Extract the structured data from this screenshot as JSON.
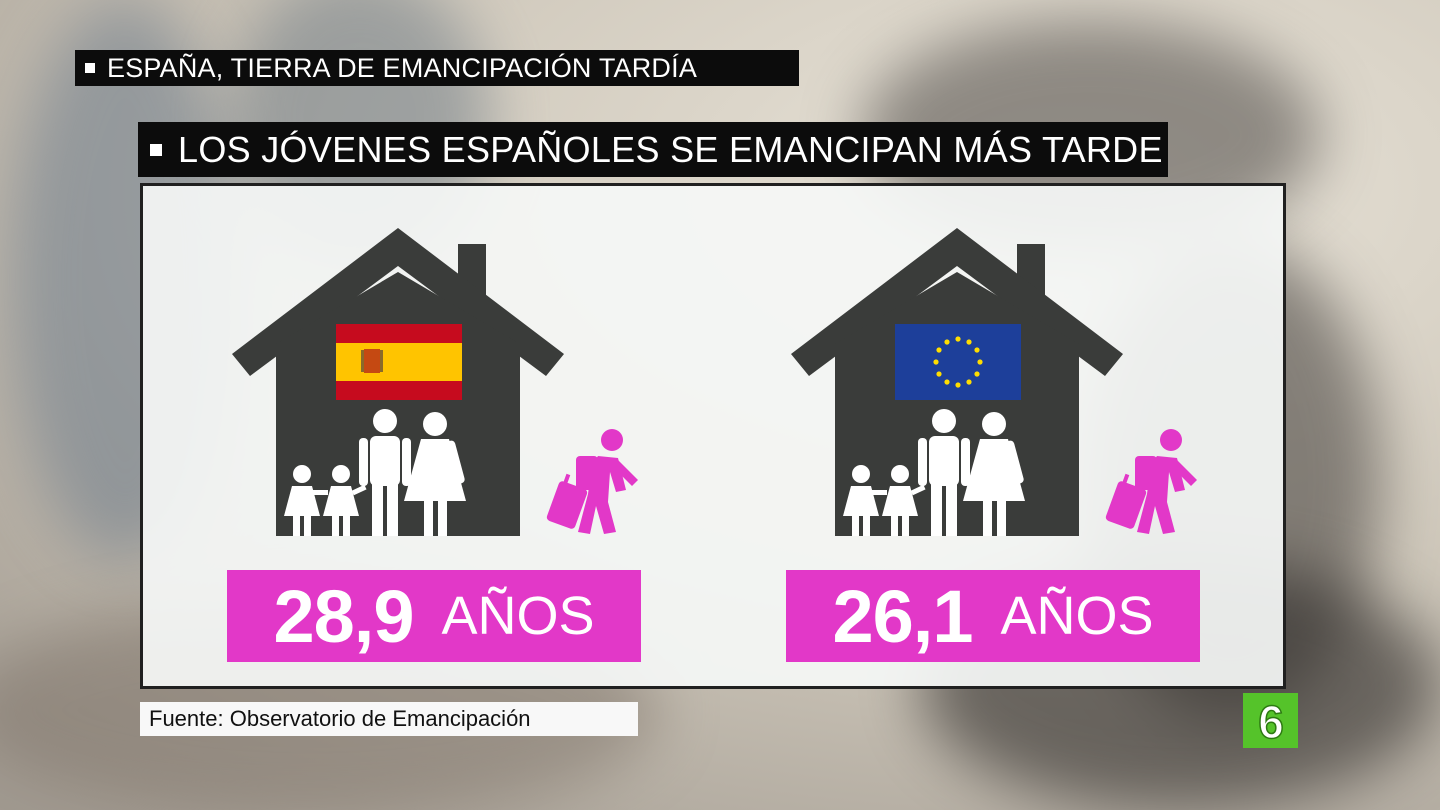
{
  "lower_third": {
    "text": "ESPAÑA, TIERRA DE EMANCIPACIÓN TARDÍA"
  },
  "headline": {
    "text": "LOS JÓVENES ESPAÑOLES SE EMANCIPAN MÁS TARDE"
  },
  "groups": [
    {
      "flag": "spain-flag",
      "age": "28,9",
      "unit": "AÑOS"
    },
    {
      "flag": "eu-flag",
      "age": "26,1",
      "unit": "AÑOS"
    }
  ],
  "source": {
    "text": "Fuente: Observatorio de Emancipación"
  },
  "logo": {
    "text": "6"
  },
  "colors": {
    "accent": "#e238c8",
    "house": "#3a3c3a",
    "logo": "#55c32a",
    "bar": "#0c0c0c"
  },
  "icons": [
    "house-icon",
    "family-icon",
    "traveler-with-suitcase-icon"
  ]
}
